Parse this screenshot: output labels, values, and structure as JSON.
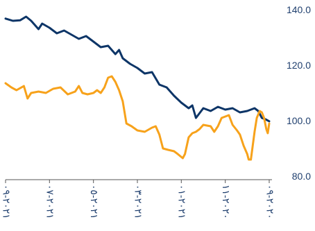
{
  "chart_data": {
    "type": "line",
    "title": "",
    "xlabel": "",
    "ylabel": "",
    "ylim": [
      80,
      140
    ],
    "yticks": [
      {
        "value": 140,
        "label": "140.0"
      },
      {
        "value": 120,
        "label": "120.0"
      },
      {
        "value": 100,
        "label": "100.0"
      },
      {
        "value": 80,
        "label": "80.0"
      }
    ],
    "xticks": [
      {
        "index": 0,
        "label": "٢٠٢١-٠٩"
      },
      {
        "index": 60,
        "label": "٢٠٢١-٠٧"
      },
      {
        "index": 120,
        "label": "٢٠٢١-٠٥"
      },
      {
        "index": 180,
        "label": "٢٠٢١-٠٣"
      },
      {
        "index": 240,
        "label": "٢٠٢١-٠١"
      },
      {
        "index": 300,
        "label": "٢٠٢٠-١١"
      },
      {
        "index": 360,
        "label": "٢٠٢٠-٠٩"
      }
    ],
    "x_reversed": true,
    "x_count": 361,
    "grid": false,
    "legend": "none",
    "series": [
      {
        "color": "#0d3567",
        "points": [
          [
            0,
            136.8
          ],
          [
            10,
            136.0
          ],
          [
            20,
            136.2
          ],
          [
            28,
            137.5
          ],
          [
            35,
            136.0
          ],
          [
            45,
            133.0
          ],
          [
            50,
            135.0
          ],
          [
            60,
            133.5
          ],
          [
            70,
            131.5
          ],
          [
            80,
            132.5
          ],
          [
            90,
            131.0
          ],
          [
            100,
            129.5
          ],
          [
            110,
            130.5
          ],
          [
            120,
            128.5
          ],
          [
            130,
            126.5
          ],
          [
            140,
            127.0
          ],
          [
            150,
            124.0
          ],
          [
            155,
            125.5
          ],
          [
            160,
            122.5
          ],
          [
            170,
            120.5
          ],
          [
            180,
            119.0
          ],
          [
            190,
            117.0
          ],
          [
            200,
            117.5
          ],
          [
            210,
            113.0
          ],
          [
            220,
            112.0
          ],
          [
            230,
            109.0
          ],
          [
            240,
            106.5
          ],
          [
            250,
            104.5
          ],
          [
            255,
            105.5
          ],
          [
            260,
            101.0
          ],
          [
            270,
            104.5
          ],
          [
            280,
            103.5
          ],
          [
            290,
            105.0
          ],
          [
            300,
            104.0
          ],
          [
            310,
            104.5
          ],
          [
            320,
            103.0
          ],
          [
            330,
            103.5
          ],
          [
            340,
            104.5
          ],
          [
            345,
            103.5
          ],
          [
            350,
            101.0
          ],
          [
            355,
            100.5
          ],
          [
            360,
            99.8
          ]
        ]
      },
      {
        "color": "#f7a21b",
        "points": [
          [
            0,
            113.5
          ],
          [
            8,
            112.0
          ],
          [
            15,
            111.0
          ],
          [
            25,
            112.5
          ],
          [
            30,
            108.0
          ],
          [
            35,
            110.0
          ],
          [
            45,
            110.5
          ],
          [
            55,
            110.0
          ],
          [
            65,
            111.5
          ],
          [
            75,
            112.0
          ],
          [
            85,
            109.5
          ],
          [
            95,
            110.5
          ],
          [
            100,
            112.5
          ],
          [
            105,
            110.0
          ],
          [
            112,
            109.5
          ],
          [
            120,
            110.0
          ],
          [
            125,
            111.0
          ],
          [
            130,
            110.0
          ],
          [
            135,
            112.0
          ],
          [
            140,
            115.5
          ],
          [
            145,
            116.0
          ],
          [
            150,
            114.0
          ],
          [
            155,
            111.0
          ],
          [
            160,
            107.0
          ],
          [
            165,
            99.0
          ],
          [
            172,
            98.0
          ],
          [
            180,
            96.5
          ],
          [
            190,
            96.0
          ],
          [
            200,
            97.5
          ],
          [
            205,
            98.0
          ],
          [
            210,
            95.0
          ],
          [
            215,
            90.0
          ],
          [
            222,
            89.5
          ],
          [
            230,
            89.0
          ],
          [
            235,
            88.0
          ],
          [
            242,
            86.5
          ],
          [
            245,
            88.0
          ],
          [
            250,
            94.0
          ],
          [
            255,
            95.5
          ],
          [
            260,
            96.0
          ],
          [
            265,
            97.0
          ],
          [
            270,
            98.5
          ],
          [
            280,
            98.0
          ],
          [
            285,
            96.0
          ],
          [
            290,
            98.0
          ],
          [
            295,
            101.0
          ],
          [
            305,
            102.0
          ],
          [
            310,
            98.5
          ],
          [
            316,
            96.5
          ],
          [
            320,
            95.0
          ],
          [
            325,
            91.0
          ],
          [
            330,
            88.0
          ],
          [
            332,
            86.0
          ],
          [
            335,
            86.0
          ],
          [
            340,
            96.0
          ],
          [
            343,
            101.0
          ],
          [
            347,
            103.5
          ],
          [
            350,
            103.0
          ],
          [
            353,
            101.0
          ],
          [
            356,
            97.0
          ],
          [
            358,
            95.5
          ],
          [
            360,
            99.0
          ]
        ]
      }
    ]
  }
}
